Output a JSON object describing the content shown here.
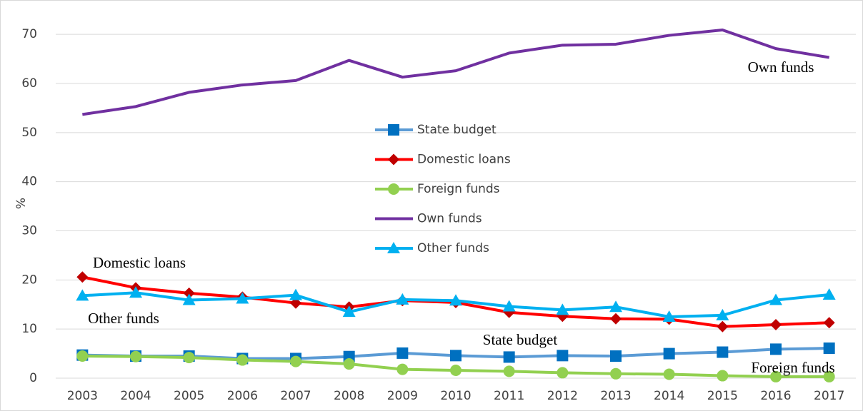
{
  "chart_data": {
    "type": "line",
    "y_label": "%",
    "categories": [
      "2003",
      "2004",
      "2005",
      "2006",
      "2007",
      "2008",
      "2009",
      "2010",
      "2011",
      "2012",
      "2013",
      "2014",
      "2015",
      "2016",
      "2017"
    ],
    "series": [
      {
        "name": "State budget",
        "color": "#5b9bd5",
        "marker": "square",
        "marker_color": "#0070c0",
        "values": [
          4.7,
          4.5,
          4.5,
          4.0,
          4.0,
          4.4,
          5.1,
          4.6,
          4.3,
          4.6,
          4.5,
          5.0,
          5.3,
          5.9,
          6.1
        ]
      },
      {
        "name": "Domestic loans",
        "color": "#ff0000",
        "marker": "diamond",
        "marker_color": "#c00000",
        "values": [
          20.6,
          18.4,
          17.3,
          16.5,
          15.3,
          14.5,
          15.8,
          15.4,
          13.4,
          12.6,
          12.1,
          12.0,
          10.5,
          10.9,
          11.3
        ]
      },
      {
        "name": "Foreign funds",
        "color": "#92d050",
        "marker": "circle",
        "marker_color": "#92d050",
        "values": [
          4.5,
          4.4,
          4.2,
          3.7,
          3.4,
          2.9,
          1.8,
          1.6,
          1.4,
          1.1,
          0.9,
          0.8,
          0.5,
          0.3,
          0.3
        ]
      },
      {
        "name": "Own funds",
        "color": "#7030a0",
        "marker": "none",
        "marker_color": "#7030a0",
        "values": [
          53.7,
          55.3,
          58.2,
          59.7,
          60.6,
          64.7,
          61.3,
          62.6,
          66.2,
          67.8,
          68.0,
          69.8,
          70.9,
          67.1,
          65.3
        ]
      },
      {
        "name": "Other funds",
        "color": "#00b0f0",
        "marker": "triangle",
        "marker_color": "#00b0f0",
        "values": [
          16.8,
          17.4,
          15.9,
          16.2,
          16.9,
          13.5,
          16.0,
          15.8,
          14.6,
          13.9,
          14.5,
          12.5,
          12.8,
          15.9,
          17.0
        ]
      }
    ],
    "annotations": [
      "Own funds",
      "Domestic loans",
      "Other funds",
      "State budget",
      "Foreign funds"
    ],
    "ylim": [
      0,
      77
    ],
    "yticks": [
      0,
      10,
      20,
      30,
      40,
      50,
      60,
      70
    ],
    "grid": true
  }
}
